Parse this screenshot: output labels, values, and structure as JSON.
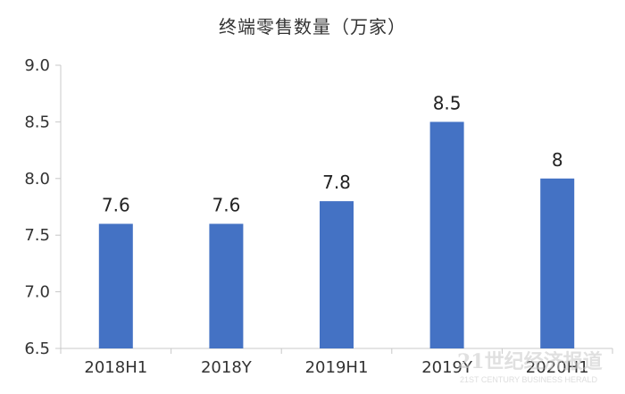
{
  "chart_data": {
    "type": "bar",
    "title": "终端零售数量（万家）",
    "categories": [
      "2018H1",
      "2018Y",
      "2019H1",
      "2019Y",
      "2020H1"
    ],
    "values": [
      7.6,
      7.6,
      7.8,
      8.5,
      8
    ],
    "data_labels": [
      "7.6",
      "7.6",
      "7.8",
      "8.5",
      "8"
    ],
    "ylim": [
      6.5,
      9.0
    ],
    "yticks": [
      "6.5",
      "7.0",
      "7.5",
      "8.0",
      "8.5",
      "9.0"
    ],
    "ytick_values": [
      6.5,
      7.0,
      7.5,
      8.0,
      8.5,
      9.0
    ],
    "grid": false,
    "legend": "none",
    "bar_color": "#4472c4",
    "axis_color": "#c8c8c8"
  },
  "watermark": {
    "text": "21世纪经济报道",
    "sub": "21ST CENTURY BUSINESS HERALD"
  }
}
